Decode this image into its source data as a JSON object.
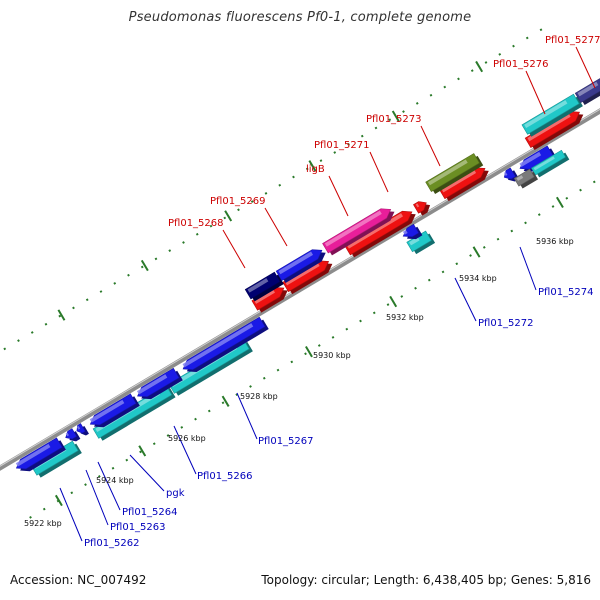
{
  "title": "Pseudomonas fluorescens Pf0-1, complete genome",
  "footer": {
    "accession": "Accession: NC_007492",
    "stats": "Topology: circular; Length: 6,438,405 bp; Genes: 5,816"
  },
  "colors": {
    "backbone": "#8c8c8c",
    "label_forward": "#cc0000",
    "label_reverse": "#0000bb",
    "tick_dash": "#2a7a2a",
    "blue": "#1a1ae6",
    "cyan": "#20c8c8",
    "red": "#ee1111",
    "magenta": "#e81e9a",
    "olive": "#6b8e23",
    "navy": "#000070",
    "gray": "#7a7a7a",
    "slate": "#3a3a8c"
  },
  "tick_labels": [
    "5922 kbp",
    "5924 kbp",
    "5926 kbp",
    "5928 kbp",
    "5930 kbp",
    "5932 kbp",
    "5934 kbp",
    "5936 kbp"
  ],
  "gene_labels": {
    "forward": [
      "Pfl01_5268",
      "Pfl01_5269",
      "ligB",
      "Pfl01_5271",
      "Pfl01_5273",
      "Pfl01_5276",
      "Pfl01_5277"
    ],
    "reverse": [
      "Pfl01_5262",
      "Pfl01_5263",
      "Pfl01_5264",
      "pgk",
      "Pfl01_5266",
      "Pfl01_5267",
      "Pfl01_5272",
      "Pfl01_5274"
    ]
  }
}
